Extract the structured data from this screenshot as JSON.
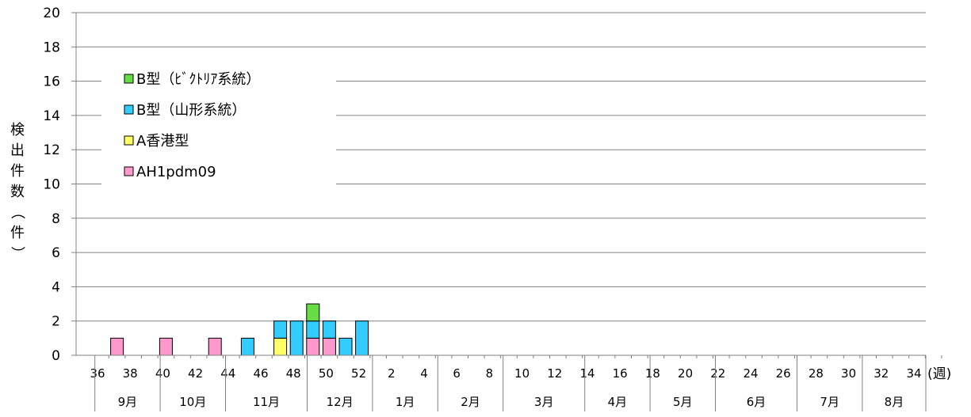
{
  "chart_data": {
    "type": "bar",
    "stacked": true,
    "ylabel": "検出件数（件）",
    "xlabel": "(週)",
    "ylim": [
      0,
      20
    ],
    "yticks": [
      0,
      2,
      4,
      6,
      8,
      10,
      12,
      14,
      16,
      18,
      20
    ],
    "grid": true,
    "legend_position": "top-left",
    "weeks": [
      36,
      37,
      38,
      39,
      40,
      41,
      42,
      43,
      44,
      45,
      46,
      47,
      48,
      49,
      50,
      51,
      52,
      1,
      2,
      3,
      4,
      5,
      6,
      7,
      8,
      9,
      10,
      11,
      12,
      13,
      14,
      15,
      16,
      17,
      18,
      19,
      20,
      21,
      22,
      23,
      24,
      25,
      26,
      27,
      28,
      29,
      30,
      31,
      32,
      33,
      34,
      35
    ],
    "week_tick_labels": [
      "36",
      "38",
      "40",
      "42",
      "44",
      "46",
      "48",
      "50",
      "52",
      "2",
      "4",
      "6",
      "8",
      "10",
      "12",
      "14",
      "16",
      "18",
      "20",
      "22",
      "24",
      "26",
      "28",
      "30",
      "32",
      "34"
    ],
    "months": [
      "9月",
      "10月",
      "11月",
      "12月",
      "1月",
      "2月",
      "3月",
      "4月",
      "5月",
      "6月",
      "7月",
      "8月"
    ],
    "series": [
      {
        "name": "AH1pdm09",
        "color": "#ff99cc",
        "values": [
          0,
          1,
          0,
          0,
          1,
          0,
          0,
          1,
          0,
          0,
          0,
          0,
          0,
          1,
          1,
          0,
          0,
          0,
          0,
          0,
          0,
          0,
          0,
          0,
          0,
          0,
          0,
          0,
          0,
          0,
          0,
          0,
          0,
          0,
          0,
          0,
          0,
          0,
          0,
          0,
          0,
          0,
          0,
          0,
          0,
          0,
          0,
          0,
          0,
          0,
          0,
          0
        ]
      },
      {
        "name": "A香港型",
        "color": "#ffff66",
        "values": [
          0,
          0,
          0,
          0,
          0,
          0,
          0,
          0,
          0,
          0,
          0,
          1,
          0,
          0,
          0,
          0,
          0,
          0,
          0,
          0,
          0,
          0,
          0,
          0,
          0,
          0,
          0,
          0,
          0,
          0,
          0,
          0,
          0,
          0,
          0,
          0,
          0,
          0,
          0,
          0,
          0,
          0,
          0,
          0,
          0,
          0,
          0,
          0,
          0,
          0,
          0,
          0
        ]
      },
      {
        "name": "B型（山形系統）",
        "color": "#33ccff",
        "values": [
          0,
          0,
          0,
          0,
          0,
          0,
          0,
          0,
          0,
          1,
          0,
          1,
          2,
          1,
          1,
          1,
          2,
          0,
          0,
          0,
          0,
          0,
          0,
          0,
          0,
          0,
          0,
          0,
          0,
          0,
          0,
          0,
          0,
          0,
          0,
          0,
          0,
          0,
          0,
          0,
          0,
          0,
          0,
          0,
          0,
          0,
          0,
          0,
          0,
          0,
          0,
          0
        ]
      },
      {
        "name": "B型（ﾋﾞｸﾄﾘｱ系統）",
        "color": "#66dd44",
        "values": [
          0,
          0,
          0,
          0,
          0,
          0,
          0,
          0,
          0,
          0,
          0,
          0,
          0,
          1,
          0,
          0,
          0,
          0,
          0,
          0,
          0,
          0,
          0,
          0,
          0,
          0,
          0,
          0,
          0,
          0,
          0,
          0,
          0,
          0,
          0,
          0,
          0,
          0,
          0,
          0,
          0,
          0,
          0,
          0,
          0,
          0,
          0,
          0,
          0,
          0,
          0,
          0
        ]
      }
    ],
    "legend_order": [
      "B型（ﾋﾞｸﾄﾘｱ系統）",
      "B型（山形系統）",
      "A香港型",
      "AH1pdm09"
    ]
  }
}
